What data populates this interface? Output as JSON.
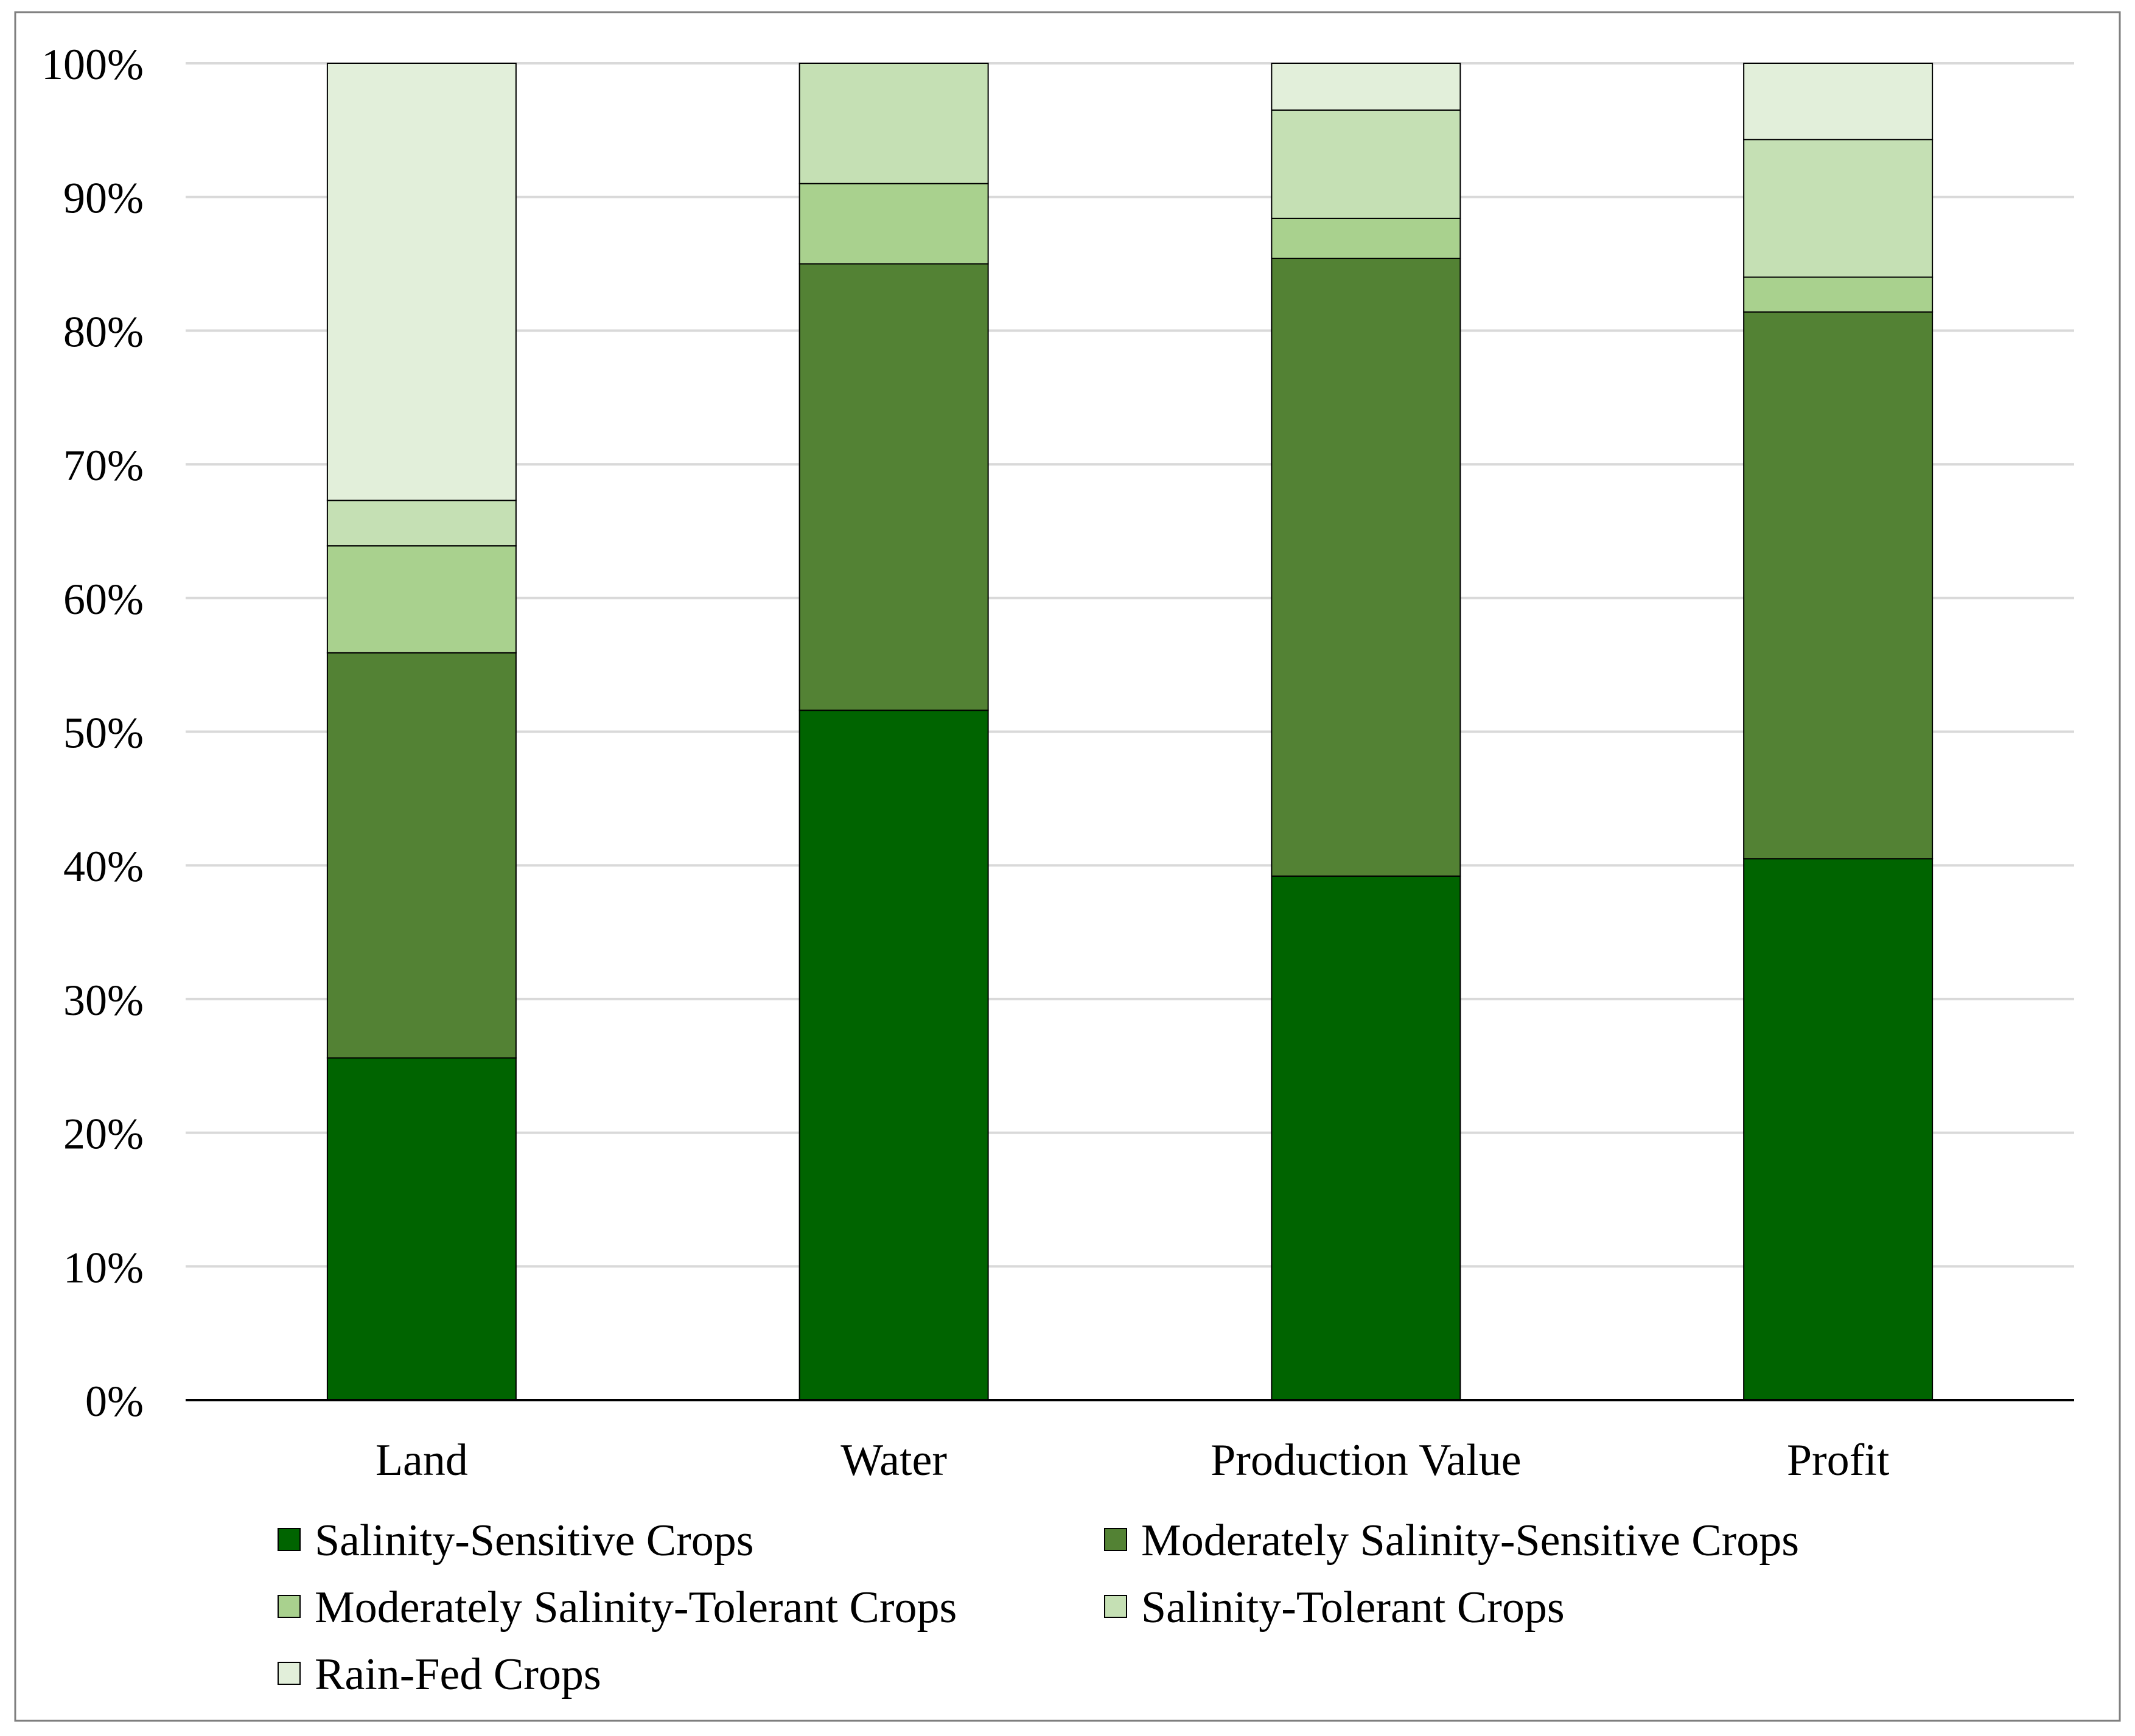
{
  "chart_data": {
    "type": "bar",
    "stacked": true,
    "categories": [
      "Land",
      "Water",
      "Production Value",
      "Profit"
    ],
    "series": [
      {
        "name": "Salinity-Sensitive Crops",
        "color": "#006400",
        "values": [
          25.6,
          51.6,
          39.2,
          40.5
        ]
      },
      {
        "name": "Moderately Salinity-Sensitive Crops",
        "color": "#538234",
        "values": [
          30.3,
          33.4,
          46.2,
          40.9
        ]
      },
      {
        "name": "Moderately Salinity-Tolerant Crops",
        "color": "#a9d18e",
        "values": [
          8.0,
          6.0,
          3.0,
          2.6
        ]
      },
      {
        "name": "Salinity-Tolerant Crops",
        "color": "#c5e0b4",
        "values": [
          3.4,
          9.0,
          8.1,
          10.3
        ]
      },
      {
        "name": "Rain-Fed Crops",
        "color": "#e2efda",
        "values": [
          32.7,
          0.0,
          3.5,
          5.7
        ]
      }
    ],
    "y_ticks": [
      "0%",
      "10%",
      "20%",
      "30%",
      "40%",
      "50%",
      "60%",
      "70%",
      "80%",
      "90%",
      "100%"
    ],
    "ylim": [
      0,
      100
    ],
    "title": "",
    "xlabel": "",
    "ylabel": "",
    "grid": true,
    "legend_position": "bottom"
  }
}
